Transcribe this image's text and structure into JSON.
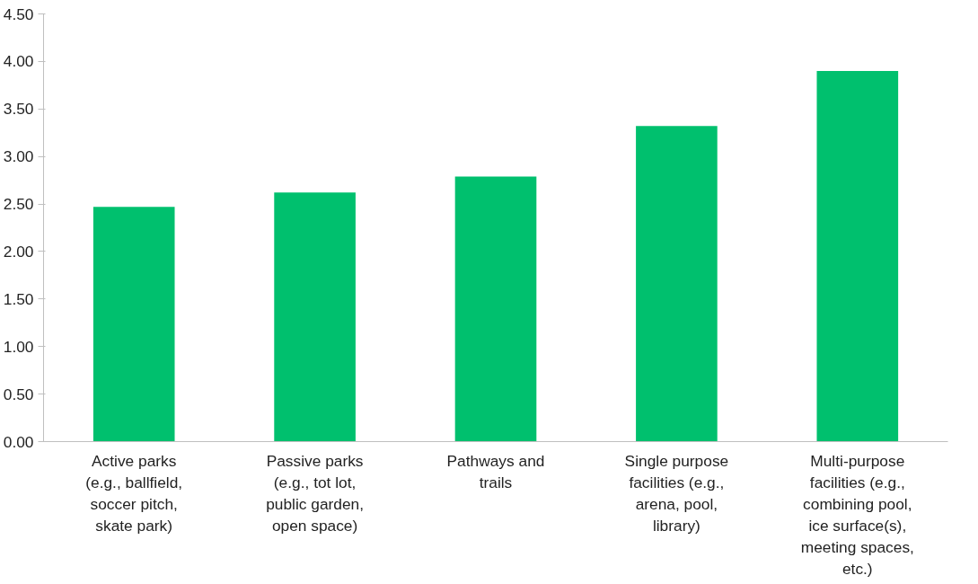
{
  "chart_data": {
    "type": "bar",
    "categories": [
      "Active parks (e.g., ballfield, soccer pitch, skate park)",
      "Passive parks (e.g., tot lot, public garden, open space)",
      "Pathways and trails",
      "Single purpose facilities (e.g., arena, pool, library)",
      "Multi-purpose facilities (e.g., combining pool, ice surface(s), meeting spaces, etc.)"
    ],
    "values": [
      2.47,
      2.62,
      2.79,
      3.32,
      3.9
    ],
    "color": "#00c06e",
    "ylim": [
      0,
      4.5
    ],
    "yticks": [
      {
        "value": 0,
        "label": "0.00"
      },
      {
        "value": 0.5,
        "label": "0.50"
      },
      {
        "value": 1,
        "label": "1.00"
      },
      {
        "value": 1.5,
        "label": "1.50"
      },
      {
        "value": 2,
        "label": "2.00"
      },
      {
        "value": 2.5,
        "label": "2.50"
      },
      {
        "value": 3,
        "label": "3.00"
      },
      {
        "value": 3.5,
        "label": "3.50"
      },
      {
        "value": 4,
        "label": "4.00"
      },
      {
        "value": 4.5,
        "label": "4.50"
      }
    ],
    "grid": false
  }
}
